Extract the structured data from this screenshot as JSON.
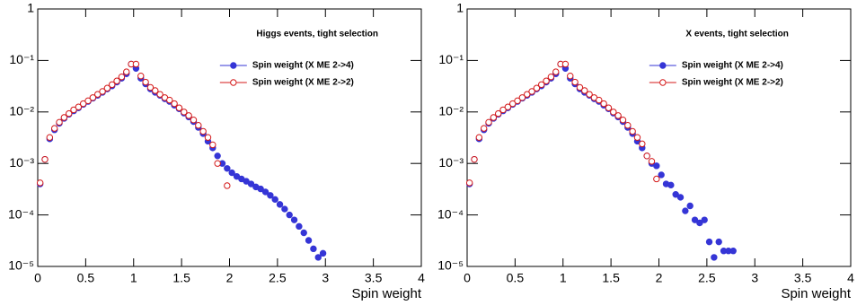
{
  "chart_data": [
    {
      "type": "scatter",
      "annotation": "Higgs events, tight selection",
      "x_label": "Spin weight",
      "log_y": true,
      "xlim": [
        0,
        4
      ],
      "ylim": [
        1e-05,
        1
      ],
      "xticks": [
        0,
        0.5,
        1,
        1.5,
        2,
        2.5,
        3,
        3.5,
        4
      ],
      "yticks": [
        {
          "value": 1e-05,
          "label": "10⁻⁵"
        },
        {
          "value": 0.0001,
          "label": "10⁻⁴"
        },
        {
          "value": 0.001,
          "label": "10⁻³"
        },
        {
          "value": 0.01,
          "label": "10⁻²"
        },
        {
          "value": 0.1,
          "label": "10⁻¹"
        },
        1
      ],
      "series": [
        {
          "name": "Spin weight (X ME 2->4)",
          "color": "#3535d6",
          "marker": "filled",
          "x": [
            0.025,
            0.075,
            0.125,
            0.175,
            0.225,
            0.275,
            0.325,
            0.375,
            0.425,
            0.475,
            0.525,
            0.575,
            0.625,
            0.675,
            0.725,
            0.775,
            0.825,
            0.875,
            0.925,
            0.975,
            1.025,
            1.075,
            1.125,
            1.175,
            1.225,
            1.275,
            1.325,
            1.375,
            1.425,
            1.475,
            1.525,
            1.575,
            1.625,
            1.675,
            1.725,
            1.775,
            1.825,
            1.875,
            1.925,
            1.975,
            2.025,
            2.075,
            2.125,
            2.175,
            2.225,
            2.275,
            2.325,
            2.375,
            2.425,
            2.475,
            2.525,
            2.575,
            2.625,
            2.675,
            2.725,
            2.775,
            2.825,
            2.875,
            2.925,
            2.975
          ],
          "values": [
            0.0004,
            0.0012,
            0.003,
            0.0045,
            0.006,
            0.0075,
            0.009,
            0.0105,
            0.012,
            0.014,
            0.016,
            0.0185,
            0.021,
            0.024,
            0.028,
            0.032,
            0.038,
            0.045,
            0.055,
            0.085,
            0.07,
            0.045,
            0.035,
            0.028,
            0.024,
            0.021,
            0.018,
            0.016,
            0.0135,
            0.0115,
            0.0095,
            0.008,
            0.0065,
            0.005,
            0.0038,
            0.0027,
            0.002,
            0.0014,
            0.001,
            0.0008,
            0.00066,
            0.00056,
            0.0005,
            0.00045,
            0.0004,
            0.00035,
            0.00032,
            0.00028,
            0.00024,
            0.0002,
            0.00016,
            0.00013,
            0.0001,
            8e-05,
            6e-05,
            4.5e-05,
            3.2e-05,
            2.2e-05,
            1.5e-05,
            1.8e-05
          ]
        },
        {
          "name": "Spin weight (X ME 2->2)",
          "color": "#d41a1a",
          "marker": "open",
          "x": [
            0.025,
            0.075,
            0.125,
            0.175,
            0.225,
            0.275,
            0.325,
            0.375,
            0.425,
            0.475,
            0.525,
            0.575,
            0.625,
            0.675,
            0.725,
            0.775,
            0.825,
            0.875,
            0.925,
            0.975,
            1.025,
            1.075,
            1.125,
            1.175,
            1.225,
            1.275,
            1.325,
            1.375,
            1.425,
            1.475,
            1.525,
            1.575,
            1.625,
            1.675,
            1.725,
            1.775,
            1.825,
            1.875,
            1.975
          ],
          "values": [
            0.00042,
            0.0012,
            0.0032,
            0.0048,
            0.0063,
            0.0078,
            0.0093,
            0.011,
            0.0125,
            0.0145,
            0.0165,
            0.019,
            0.022,
            0.025,
            0.029,
            0.034,
            0.04,
            0.048,
            0.06,
            0.085,
            0.085,
            0.05,
            0.038,
            0.03,
            0.026,
            0.022,
            0.019,
            0.017,
            0.0145,
            0.012,
            0.01,
            0.0085,
            0.007,
            0.0055,
            0.0042,
            0.0032,
            0.0023,
            0.001,
            0.00037
          ]
        }
      ]
    },
    {
      "type": "scatter",
      "annotation": "X events, tight selection",
      "x_label": "Spin weight",
      "log_y": true,
      "xlim": [
        0,
        4
      ],
      "ylim": [
        1e-05,
        1
      ],
      "xticks": [
        0,
        0.5,
        1,
        1.5,
        2,
        2.5,
        3,
        3.5,
        4
      ],
      "yticks": [
        {
          "value": 1e-05,
          "label": "10⁻⁵"
        },
        {
          "value": 0.0001,
          "label": "10⁻⁴"
        },
        {
          "value": 0.001,
          "label": "10⁻³"
        },
        {
          "value": 0.01,
          "label": "10⁻²"
        },
        {
          "value": 0.1,
          "label": "10⁻¹"
        },
        1
      ],
      "series": [
        {
          "name": "Spin weight (X ME 2->4)",
          "color": "#3535d6",
          "marker": "filled",
          "x": [
            0.025,
            0.075,
            0.125,
            0.175,
            0.225,
            0.275,
            0.325,
            0.375,
            0.425,
            0.475,
            0.525,
            0.575,
            0.625,
            0.675,
            0.725,
            0.775,
            0.825,
            0.875,
            0.925,
            0.975,
            1.025,
            1.075,
            1.125,
            1.175,
            1.225,
            1.275,
            1.325,
            1.375,
            1.425,
            1.475,
            1.525,
            1.575,
            1.625,
            1.675,
            1.725,
            1.775,
            1.825,
            1.875,
            1.925,
            1.975,
            2.025,
            2.075,
            2.125,
            2.175,
            2.225,
            2.275,
            2.325,
            2.375,
            2.425,
            2.475,
            2.525,
            2.575,
            2.625,
            2.675,
            2.725,
            2.775
          ],
          "values": [
            0.0004,
            0.0012,
            0.003,
            0.0045,
            0.006,
            0.0075,
            0.009,
            0.0105,
            0.012,
            0.014,
            0.016,
            0.0185,
            0.021,
            0.024,
            0.028,
            0.032,
            0.038,
            0.045,
            0.055,
            0.085,
            0.07,
            0.045,
            0.035,
            0.028,
            0.024,
            0.021,
            0.018,
            0.016,
            0.0135,
            0.0115,
            0.0095,
            0.008,
            0.0065,
            0.005,
            0.0038,
            0.0027,
            0.002,
            0.0014,
            0.001,
            0.0009,
            0.0006,
            0.0004,
            0.00038,
            0.00025,
            0.00022,
            0.00012,
            0.00015,
            8e-05,
            7e-05,
            8e-05,
            3e-05,
            1.5e-05,
            3e-05,
            2e-05,
            2e-05,
            2e-05
          ]
        },
        {
          "name": "Spin weight (X ME 2->2)",
          "color": "#d41a1a",
          "marker": "open",
          "x": [
            0.025,
            0.075,
            0.125,
            0.175,
            0.225,
            0.275,
            0.325,
            0.375,
            0.425,
            0.475,
            0.525,
            0.575,
            0.625,
            0.675,
            0.725,
            0.775,
            0.825,
            0.875,
            0.925,
            0.975,
            1.025,
            1.075,
            1.125,
            1.175,
            1.225,
            1.275,
            1.325,
            1.375,
            1.425,
            1.475,
            1.525,
            1.575,
            1.625,
            1.675,
            1.725,
            1.775,
            1.825,
            1.875,
            1.925,
            1.975
          ],
          "values": [
            0.00042,
            0.0012,
            0.0032,
            0.0048,
            0.0063,
            0.0078,
            0.0093,
            0.011,
            0.0125,
            0.0145,
            0.0165,
            0.019,
            0.022,
            0.025,
            0.029,
            0.034,
            0.04,
            0.048,
            0.06,
            0.085,
            0.085,
            0.05,
            0.038,
            0.03,
            0.026,
            0.022,
            0.019,
            0.017,
            0.0145,
            0.012,
            0.01,
            0.0085,
            0.007,
            0.0055,
            0.0042,
            0.0032,
            0.0024,
            0.0014,
            0.0011,
            0.0005
          ]
        }
      ]
    }
  ]
}
